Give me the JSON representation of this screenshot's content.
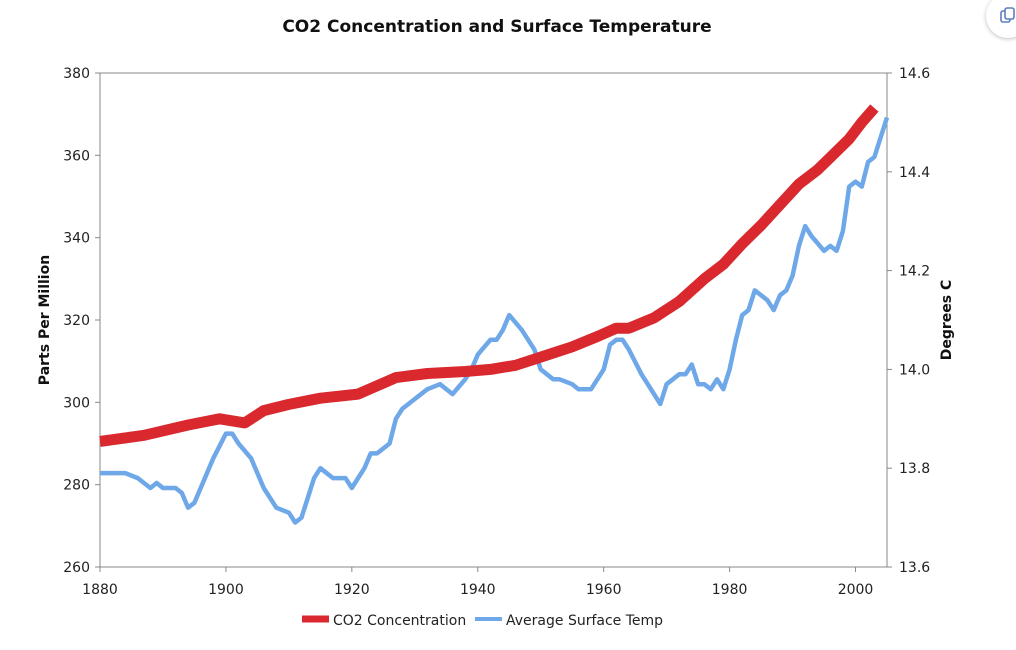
{
  "colors": {
    "co2": "#d9292f",
    "temp": "#6fa8e8",
    "frame": "#888888"
  },
  "chart_data": {
    "type": "line",
    "title": "CO2 Concentration and Surface Temperature",
    "xlabel": "",
    "ylabel": "Parts Per Million",
    "y2label": "Degrees C",
    "xlim": [
      1880,
      2005
    ],
    "ylim": [
      260,
      380
    ],
    "y2lim": [
      13.6,
      14.6
    ],
    "x_ticks": [
      "1880",
      "1900",
      "1920",
      "1940",
      "1960",
      "1980",
      "2000"
    ],
    "y_ticks": [
      "260",
      "280",
      "300",
      "320",
      "340",
      "360",
      "380"
    ],
    "y2_ticks": [
      "13.6",
      "13.8",
      "14.0",
      "14.2",
      "14.4",
      "14.6"
    ],
    "legend": {
      "position": "bottom"
    },
    "series": [
      {
        "name": "CO2 Concentration",
        "axis": "left",
        "x": [
          1880,
          1887,
          1894,
          1899,
          1903,
          1906,
          1910,
          1915,
          1921,
          1927,
          1932,
          1938,
          1942,
          1946,
          1950,
          1955,
          1959,
          1962,
          1964,
          1968,
          1972,
          1976,
          1979,
          1982,
          1985,
          1988,
          1991,
          1994,
          1996,
          1999,
          2001,
          2003
        ],
        "values": [
          290.5,
          292,
          294.5,
          296,
          295,
          298,
          299.5,
          301,
          302,
          306,
          307,
          307.5,
          308,
          309,
          311,
          313.5,
          316,
          318,
          318,
          320.5,
          324.5,
          330,
          333.5,
          338.5,
          343,
          348,
          353,
          356.5,
          359.5,
          364,
          368,
          371.5
        ]
      },
      {
        "name": "Average Surface Temp",
        "axis": "right",
        "x": [
          1880,
          1884,
          1886,
          1888,
          1889,
          1890,
          1892,
          1893,
          1894,
          1895,
          1897,
          1898,
          1900,
          1901,
          1902,
          1904,
          1906,
          1907,
          1908,
          1910,
          1911,
          1912,
          1914,
          1915,
          1917,
          1919,
          1920,
          1922,
          1923,
          1924,
          1926,
          1927,
          1928,
          1930,
          1932,
          1934,
          1936,
          1938,
          1939,
          1940,
          1942,
          1943,
          1944,
          1945,
          1947,
          1949,
          1950,
          1952,
          1953,
          1955,
          1956,
          1958,
          1960,
          1961,
          1962,
          1963,
          1964,
          1966,
          1967,
          1968,
          1969,
          1970,
          1972,
          1973,
          1974,
          1975,
          1976,
          1977,
          1978,
          1979,
          1980,
          1981,
          1982,
          1983,
          1984,
          1986,
          1987,
          1988,
          1989,
          1990,
          1991,
          1992,
          1993,
          1995,
          1996,
          1997,
          1998,
          1999,
          2000,
          2001,
          2002,
          2003,
          2005
        ],
        "values": [
          13.79,
          13.79,
          13.78,
          13.76,
          13.77,
          13.76,
          13.76,
          13.75,
          13.72,
          13.73,
          13.79,
          13.82,
          13.87,
          13.87,
          13.85,
          13.82,
          13.76,
          13.74,
          13.72,
          13.71,
          13.69,
          13.7,
          13.78,
          13.8,
          13.78,
          13.78,
          13.76,
          13.8,
          13.83,
          13.83,
          13.85,
          13.9,
          13.92,
          13.94,
          13.96,
          13.97,
          13.95,
          13.98,
          14.0,
          14.03,
          14.06,
          14.06,
          14.08,
          14.11,
          14.08,
          14.04,
          14.0,
          13.98,
          13.98,
          13.97,
          13.96,
          13.96,
          14.0,
          14.05,
          14.06,
          14.06,
          14.04,
          13.99,
          13.97,
          13.95,
          13.93,
          13.97,
          13.99,
          13.99,
          14.01,
          13.97,
          13.97,
          13.96,
          13.98,
          13.96,
          14.0,
          14.06,
          14.11,
          14.12,
          14.16,
          14.14,
          14.12,
          14.15,
          14.16,
          14.19,
          14.25,
          14.29,
          14.27,
          14.24,
          14.25,
          14.24,
          14.28,
          14.37,
          14.38,
          14.37,
          14.42,
          14.43,
          14.51
        ]
      }
    ]
  }
}
